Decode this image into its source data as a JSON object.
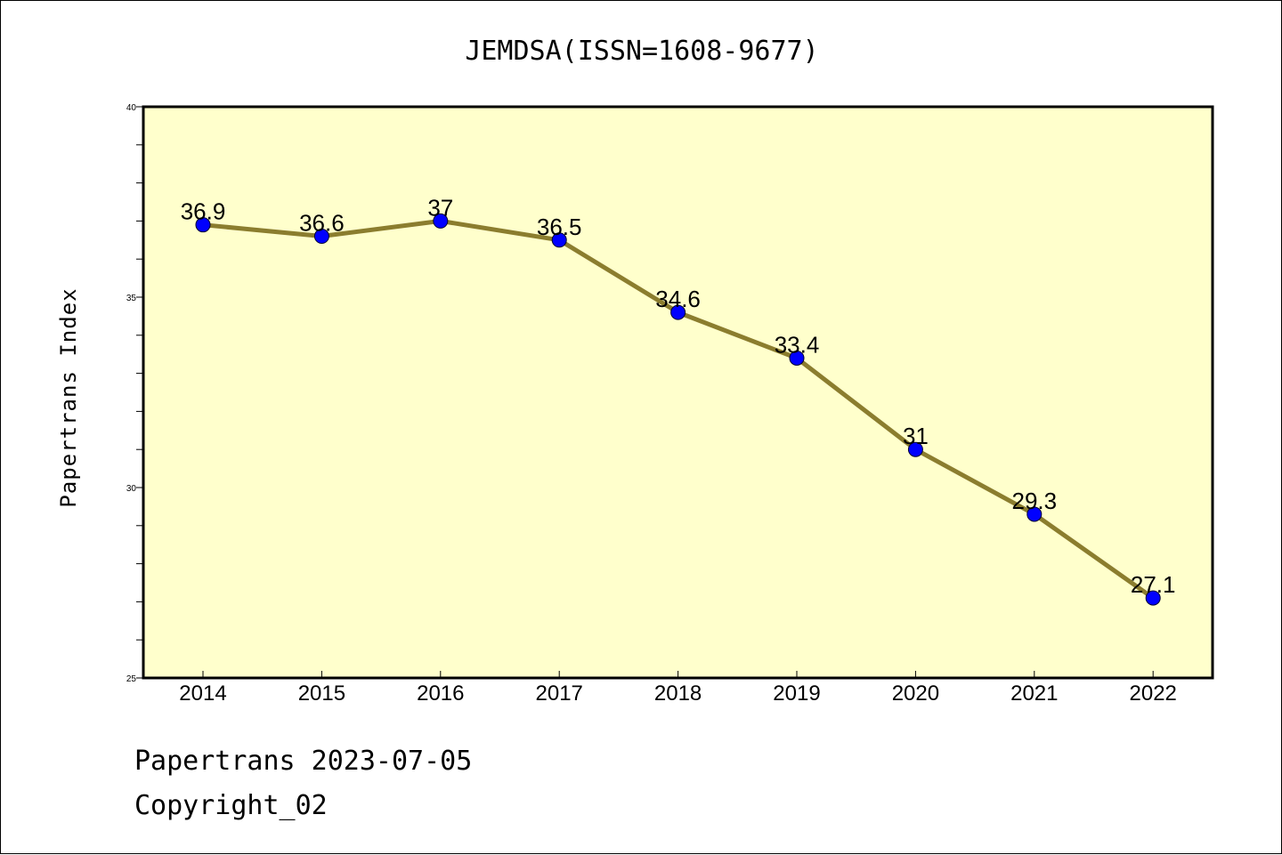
{
  "chart_data": {
    "type": "line",
    "title": "JEMDSA(ISSN=1608-9677)",
    "xlabel": "",
    "ylabel": "Papertrans Index",
    "x": [
      "2014",
      "2015",
      "2016",
      "2017",
      "2018",
      "2019",
      "2020",
      "2021",
      "2022"
    ],
    "series": [
      {
        "values": [
          36.9,
          36.6,
          37,
          36.5,
          34.6,
          33.4,
          31,
          29.3,
          27.1
        ],
        "labels": [
          "36.9",
          "36.6",
          "37",
          "36.5",
          "34.6",
          "33.4",
          "31",
          "29.3",
          "27.1"
        ]
      }
    ],
    "ylim": [
      25,
      40
    ],
    "yticks": [
      "25",
      "30",
      "35",
      "40"
    ],
    "grid": false,
    "colors": {
      "plot_background": "#ffffcc",
      "line": "#8b7d2e",
      "marker": "#0000ff"
    }
  },
  "footer": {
    "line1": "Papertrans 2023-07-05",
    "line2": "Copyright_02"
  }
}
